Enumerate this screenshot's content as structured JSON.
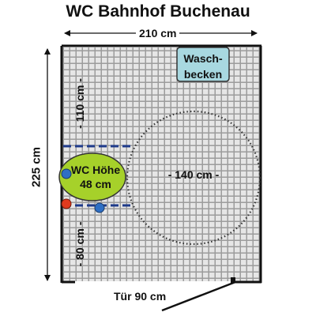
{
  "title": "WC Bahnhof Buchenau",
  "dimensions": {
    "width_label": "210 cm",
    "height_label": "225 cm",
    "door_label": "Tür 90 cm"
  },
  "room": {
    "sink_label_line1": "Wasch-",
    "sink_label_line2": "becken",
    "wc_label_line1": "WC Höhe",
    "wc_label_line2": "48 cm",
    "turning_circle_label": "- 140 cm -",
    "clearance_top_label": "- 110 cm -",
    "clearance_bottom_label": "- 80 cm -"
  },
  "colors": {
    "grid_background": "#9c9c9c",
    "grid_lines": "#e6e6e6",
    "sink_fill": "#a8d8e0",
    "wc_fill": "#a6d12a",
    "grab_bar": "#1e3a8a",
    "flush_blue": "#2e6fc4",
    "emergency_red": "#e03a1e"
  }
}
